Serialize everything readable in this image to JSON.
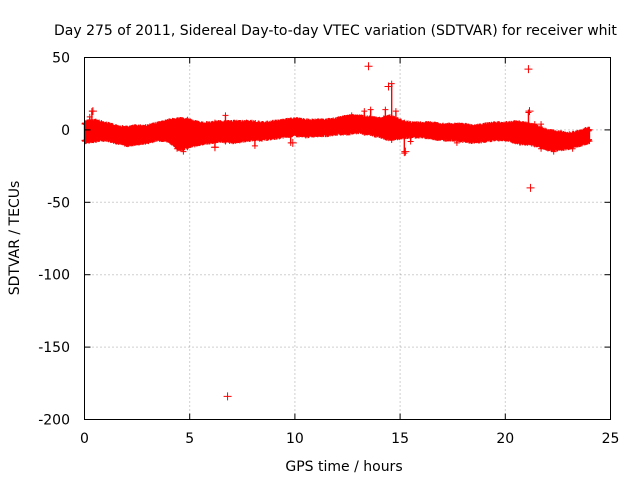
{
  "chart_data": {
    "type": "scatter",
    "title": "Day 275 of 2011, Sidereal Day-to-day VTEC variation (SDTVAR) for receiver whit",
    "xlabel": "GPS time / hours",
    "ylabel": "SDTVAR / TECUs",
    "xlim": [
      0,
      25
    ],
    "ylim": [
      -200,
      50
    ],
    "xticks": [
      0,
      5,
      10,
      15,
      20,
      25
    ],
    "yticks": [
      50,
      0,
      -50,
      -100,
      -150,
      -200
    ],
    "xtick_labels": [
      "0",
      "5",
      "10",
      "15",
      "20",
      "25"
    ],
    "ytick_labels": [
      "50",
      "0",
      "-50",
      "-100",
      "-150",
      "-200"
    ],
    "grid": true,
    "marker": "+",
    "series": [
      {
        "name": "SDTVAR",
        "color": "#ff0000",
        "band": [
          [
            0.0,
            -7,
            4
          ],
          [
            0.5,
            -6,
            5
          ],
          [
            1.0,
            -5,
            3
          ],
          [
            1.5,
            -7,
            1
          ],
          [
            2.0,
            -9,
            0
          ],
          [
            2.5,
            -8,
            1
          ],
          [
            3.0,
            -7,
            1
          ],
          [
            3.5,
            -5,
            3
          ],
          [
            4.0,
            -6,
            5
          ],
          [
            4.5,
            -12,
            6
          ],
          [
            5.0,
            -10,
            5
          ],
          [
            5.5,
            -8,
            3
          ],
          [
            6.0,
            -7,
            3
          ],
          [
            6.5,
            -6,
            4
          ],
          [
            7.0,
            -7,
            4
          ],
          [
            7.5,
            -6,
            4
          ],
          [
            8.0,
            -5,
            4
          ],
          [
            8.5,
            -5,
            3
          ],
          [
            9.0,
            -4,
            4
          ],
          [
            9.5,
            -3,
            5
          ],
          [
            10.0,
            -2,
            6
          ],
          [
            10.5,
            -3,
            5
          ],
          [
            11.0,
            -2,
            5
          ],
          [
            11.5,
            -2,
            5
          ],
          [
            12.0,
            -1,
            6
          ],
          [
            12.5,
            -1,
            8
          ],
          [
            13.0,
            0,
            8
          ],
          [
            13.5,
            -1,
            7
          ],
          [
            14.0,
            -3,
            6
          ],
          [
            14.5,
            -5,
            8
          ],
          [
            15.0,
            -4,
            5
          ],
          [
            15.5,
            -3,
            3
          ],
          [
            16.0,
            -3,
            3
          ],
          [
            16.5,
            -4,
            3
          ],
          [
            17.0,
            -5,
            2
          ],
          [
            17.5,
            -5,
            2
          ],
          [
            18.0,
            -6,
            2
          ],
          [
            18.5,
            -7,
            1
          ],
          [
            19.0,
            -6,
            2
          ],
          [
            19.5,
            -5,
            3
          ],
          [
            20.0,
            -5,
            3
          ],
          [
            20.5,
            -7,
            4
          ],
          [
            21.0,
            -8,
            3
          ],
          [
            21.5,
            -9,
            1
          ],
          [
            22.0,
            -12,
            -2
          ],
          [
            22.5,
            -12,
            -3
          ],
          [
            23.0,
            -11,
            -4
          ],
          [
            23.5,
            -9,
            -3
          ],
          [
            24.0,
            -7,
            0
          ]
        ],
        "spikes": [
          [
            0.25,
            -3,
            9
          ],
          [
            0.35,
            -2,
            13
          ],
          [
            4.4,
            -13,
            6
          ],
          [
            4.7,
            -15,
            6
          ],
          [
            4.9,
            -12,
            7
          ],
          [
            6.2,
            -12,
            5
          ],
          [
            6.7,
            -8,
            10
          ],
          [
            8.1,
            -11,
            4
          ],
          [
            9.8,
            -9,
            5
          ],
          [
            12.7,
            -1,
            10
          ],
          [
            13.3,
            -2,
            13
          ],
          [
            13.6,
            -1,
            14
          ],
          [
            14.3,
            -5,
            14
          ],
          [
            14.6,
            -7,
            32
          ],
          [
            14.8,
            -2,
            13
          ],
          [
            15.2,
            -16,
            5
          ],
          [
            15.5,
            -8,
            4
          ],
          [
            17.7,
            -9,
            2
          ],
          [
            20.7,
            -9,
            4
          ],
          [
            21.1,
            -7,
            12
          ],
          [
            21.4,
            -10,
            4
          ],
          [
            21.7,
            -13,
            4
          ],
          [
            22.3,
            -15,
            -2
          ],
          [
            23.2,
            -13,
            -3
          ]
        ],
        "outliers": [
          [
            13.5,
            44
          ],
          [
            21.1,
            42
          ],
          [
            21.15,
            13
          ],
          [
            21.2,
            -40
          ],
          [
            6.8,
            -184
          ],
          [
            9.9,
            -9
          ],
          [
            14.45,
            30
          ],
          [
            15.25,
            -15
          ],
          [
            0.4,
            13
          ],
          [
            6.2,
            -12
          ]
        ]
      }
    ]
  }
}
